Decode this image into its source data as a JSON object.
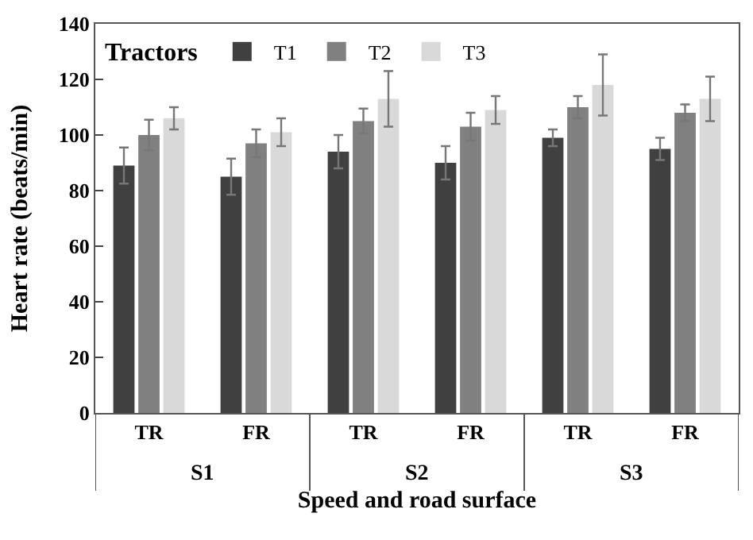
{
  "chart_data": {
    "type": "bar",
    "xlabel": "Speed and road surface",
    "ylabel": "Heart rate (beats/min)",
    "legend_title": "Tractors",
    "categories": [
      "TR",
      "FR",
      "TR",
      "FR",
      "TR",
      "FR"
    ],
    "series": [
      {
        "name": "T1",
        "color": "#404040",
        "values": [
          89,
          85,
          94,
          90,
          99,
          95
        ],
        "errors": [
          6.5,
          6.5,
          6,
          6,
          3,
          4
        ]
      },
      {
        "name": "T2",
        "color": "#808080",
        "values": [
          100,
          97,
          105,
          103,
          110,
          108
        ],
        "errors": [
          5.5,
          5,
          4.5,
          5,
          4,
          3
        ]
      },
      {
        "name": "T3",
        "color": "#d9d9d9",
        "values": [
          106,
          101,
          113,
          109,
          118,
          113
        ],
        "errors": [
          4,
          5,
          10,
          5,
          11,
          8
        ]
      }
    ],
    "annotations": [
      "S1",
      "S2",
      "S3"
    ],
    "ylim": [
      0,
      140
    ],
    "yticks": [
      0,
      20,
      40,
      60,
      80,
      100,
      120,
      140
    ],
    "legend": "top left"
  }
}
